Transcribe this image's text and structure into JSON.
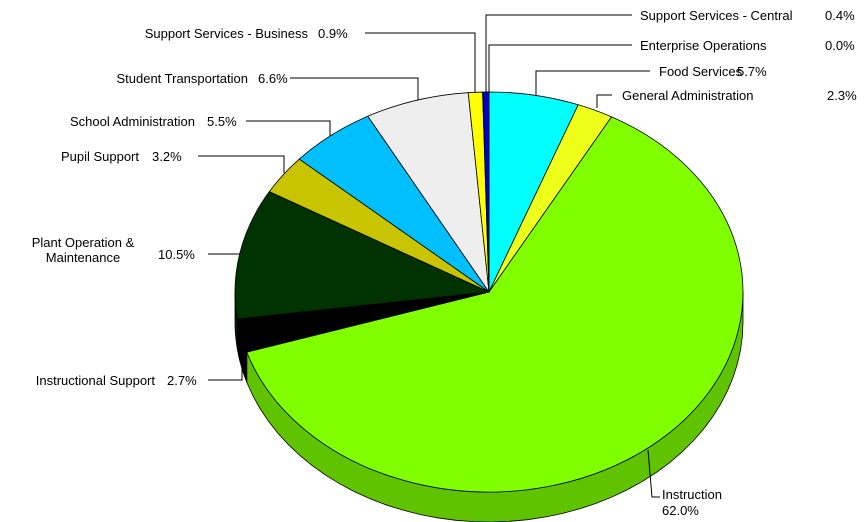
{
  "chart_data": {
    "type": "pie",
    "style": "3d",
    "title": "",
    "legend": "none",
    "start_angle_deg": 90,
    "direction": "clockwise",
    "series": [
      {
        "name": "Enterprise Operations",
        "value": 0.0,
        "label": "0.0%",
        "color": "#1e1e8c"
      },
      {
        "name": "Food Services",
        "value": 5.7,
        "label": "5.7%",
        "color": "#00ffff"
      },
      {
        "name": "General Administration",
        "value": 2.3,
        "label": "2.3%",
        "color": "#eeff1a"
      },
      {
        "name": "Instruction",
        "value": 62.0,
        "label": "62.0%",
        "color": "#80ff00",
        "side_color": "#5fc300"
      },
      {
        "name": "Instructional Support",
        "value": 2.7,
        "label": "2.7%",
        "color": "#000000",
        "side_color": "#000000"
      },
      {
        "name": "Plant Operation & Maintenance",
        "name_lines": [
          "Plant Operation &",
          "Maintenance"
        ],
        "value": 10.5,
        "label": "10.5%",
        "color": "#003300",
        "side_color": "#002200"
      },
      {
        "name": "Pupil Support",
        "value": 3.2,
        "label": "3.2%",
        "color": "#c8c400"
      },
      {
        "name": "School Administration",
        "value": 5.5,
        "label": "5.5%",
        "color": "#00bfff"
      },
      {
        "name": "Student Transportation",
        "value": 6.6,
        "label": "6.6%",
        "color": "#eeeeee"
      },
      {
        "name": "Support Services - Business",
        "value": 0.9,
        "label": "0.9%",
        "color": "#ffff00"
      },
      {
        "name": "Support Services - Central",
        "value": 0.4,
        "label": "0.4%",
        "color": "#0000cc"
      }
    ]
  }
}
